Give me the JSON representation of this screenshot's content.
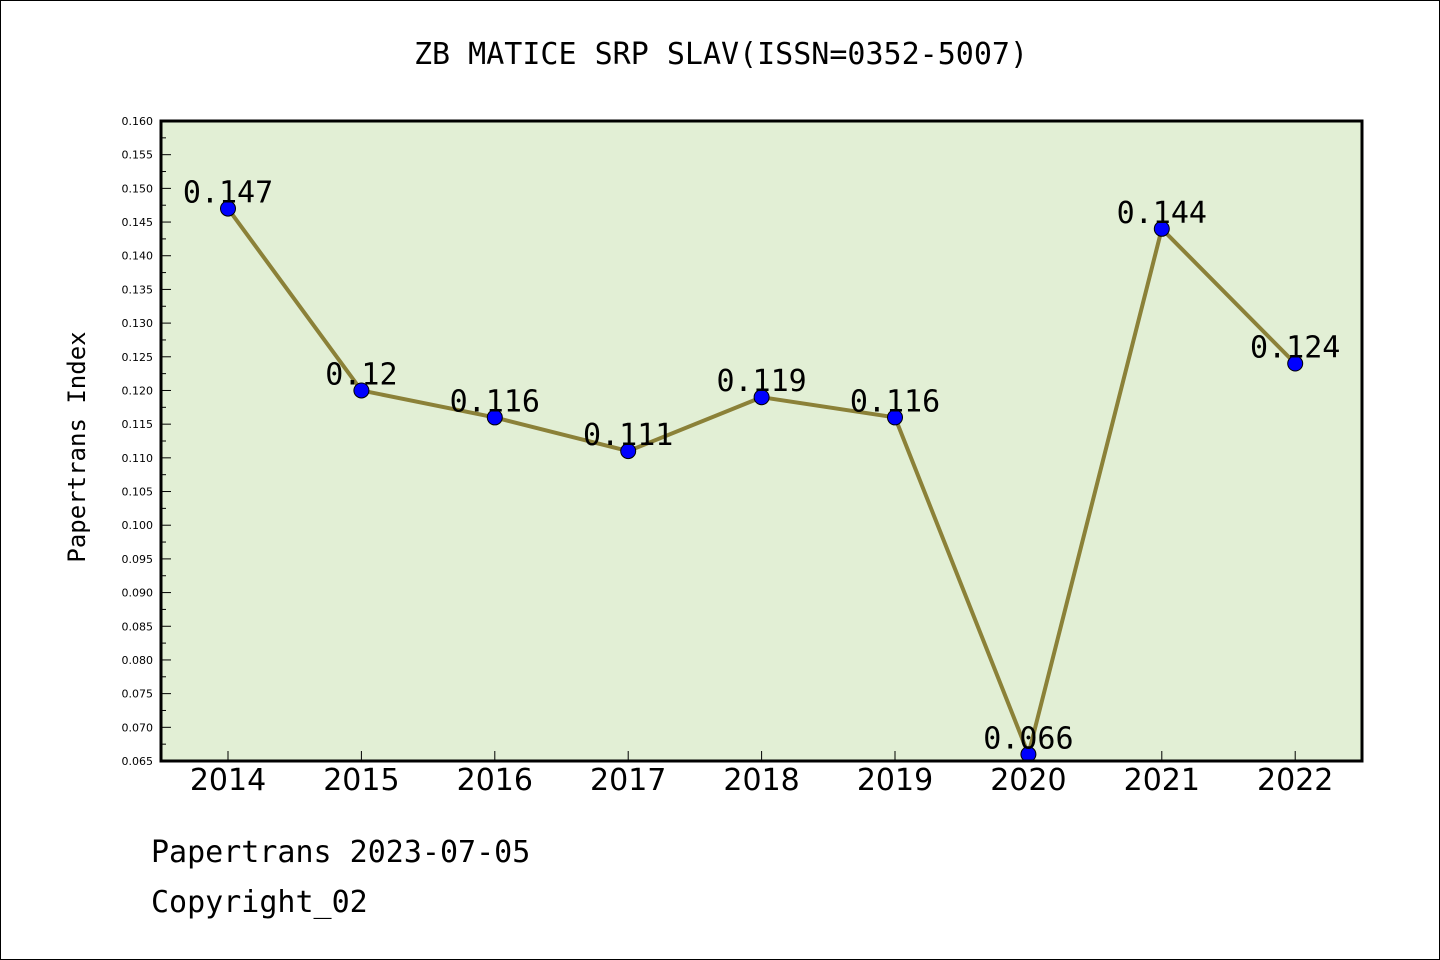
{
  "chart_data": {
    "type": "line",
    "title": "ZB MATICE SRP SLAV(ISSN=0352-5007)",
    "ylabel": "Papertrans Index",
    "xlabel": "",
    "categories": [
      "2014",
      "2015",
      "2016",
      "2017",
      "2018",
      "2019",
      "2020",
      "2021",
      "2022"
    ],
    "values": [
      0.147,
      0.12,
      0.116,
      0.111,
      0.119,
      0.116,
      0.066,
      0.144,
      0.124
    ],
    "data_labels": [
      "0.147",
      "0.12",
      "0.116",
      "0.111",
      "0.119",
      "0.116",
      "0.066",
      "0.144",
      "0.124"
    ],
    "ylim": [
      0.065,
      0.16
    ],
    "yticks": [
      "0.065",
      "0.070",
      "0.075",
      "0.080",
      "0.085",
      "0.090",
      "0.095",
      "0.100",
      "0.105",
      "0.110",
      "0.115",
      "0.120",
      "0.125",
      "0.130",
      "0.135",
      "0.140",
      "0.145",
      "0.150",
      "0.155",
      "0.160"
    ],
    "grid": false,
    "colors": {
      "plot_background": "#e2efd5",
      "line": "#8b8138",
      "marker": "#0000ff"
    }
  },
  "footer": {
    "date": "Papertrans 2023-07-05",
    "copyright": "Copyright_02"
  }
}
